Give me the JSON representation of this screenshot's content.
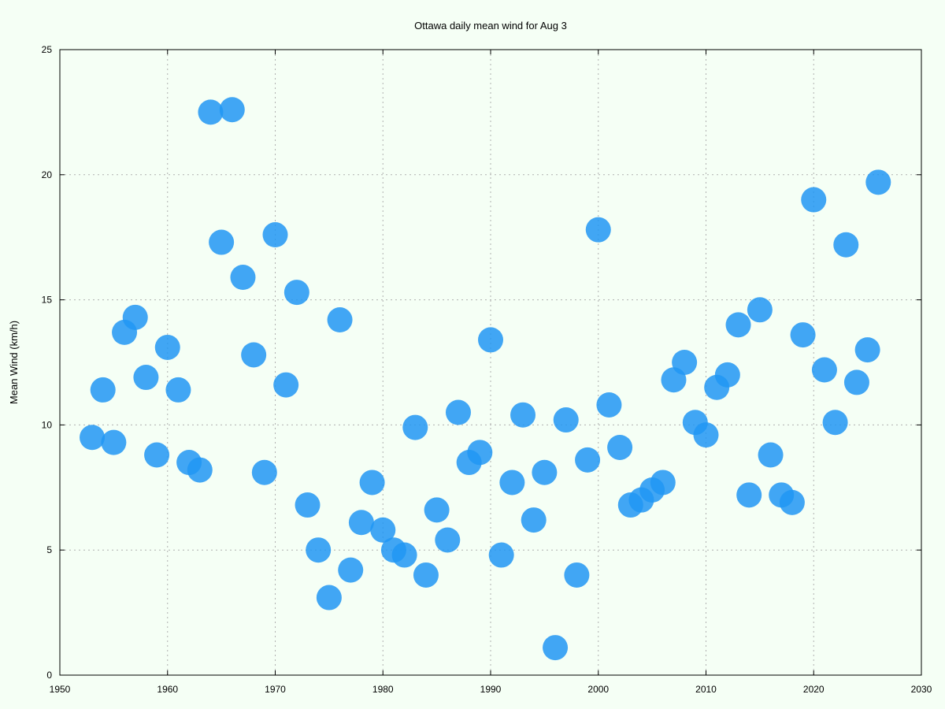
{
  "chart_data": {
    "type": "scatter",
    "title": "Ottawa daily mean wind for Aug 3",
    "xlabel": "",
    "ylabel": "Mean Wind (km/h)",
    "xlim": [
      1950,
      2030
    ],
    "ylim": [
      0,
      25
    ],
    "xticks": [
      1950,
      1960,
      1970,
      1980,
      1990,
      2000,
      2010,
      2020,
      2030
    ],
    "yticks": [
      0,
      5,
      10,
      15,
      20,
      25
    ],
    "grid": true,
    "marker_color": "#2196f3",
    "series": [
      {
        "points": [
          [
            1953,
            9.5
          ],
          [
            1954,
            11.4
          ],
          [
            1955,
            9.3
          ],
          [
            1956,
            13.7
          ],
          [
            1957,
            14.3
          ],
          [
            1958,
            11.9
          ],
          [
            1959,
            8.8
          ],
          [
            1960,
            13.1
          ],
          [
            1961,
            11.4
          ],
          [
            1962,
            8.5
          ],
          [
            1963,
            8.2
          ],
          [
            1964,
            22.5
          ],
          [
            1965,
            17.3
          ],
          [
            1966,
            22.6
          ],
          [
            1967,
            15.9
          ],
          [
            1968,
            12.8
          ],
          [
            1969,
            8.1
          ],
          [
            1970,
            17.6
          ],
          [
            1971,
            11.6
          ],
          [
            1972,
            15.3
          ],
          [
            1973,
            6.8
          ],
          [
            1974,
            5.0
          ],
          [
            1975,
            3.1
          ],
          [
            1976,
            14.2
          ],
          [
            1977,
            4.2
          ],
          [
            1978,
            6.1
          ],
          [
            1979,
            7.7
          ],
          [
            1980,
            5.8
          ],
          [
            1981,
            5.0
          ],
          [
            1982,
            4.8
          ],
          [
            1983,
            9.9
          ],
          [
            1984,
            4.0
          ],
          [
            1985,
            6.6
          ],
          [
            1986,
            5.4
          ],
          [
            1987,
            10.5
          ],
          [
            1988,
            8.5
          ],
          [
            1989,
            8.9
          ],
          [
            1990,
            13.4
          ],
          [
            1991,
            4.8
          ],
          [
            1992,
            7.7
          ],
          [
            1993,
            10.4
          ],
          [
            1994,
            6.2
          ],
          [
            1995,
            8.1
          ],
          [
            1996,
            1.1
          ],
          [
            1997,
            10.2
          ],
          [
            1998,
            4.0
          ],
          [
            1999,
            8.6
          ],
          [
            2000,
            17.8
          ],
          [
            2001,
            10.8
          ],
          [
            2002,
            9.1
          ],
          [
            2003,
            6.8
          ],
          [
            2004,
            7.0
          ],
          [
            2005,
            7.4
          ],
          [
            2006,
            7.7
          ],
          [
            2007,
            11.8
          ],
          [
            2008,
            12.5
          ],
          [
            2009,
            10.1
          ],
          [
            2010,
            9.6
          ],
          [
            2011,
            11.5
          ],
          [
            2012,
            12.0
          ],
          [
            2013,
            14.0
          ],
          [
            2014,
            7.2
          ],
          [
            2015,
            14.6
          ],
          [
            2016,
            8.8
          ],
          [
            2017,
            7.2
          ],
          [
            2018,
            6.9
          ],
          [
            2019,
            13.6
          ],
          [
            2020,
            19.0
          ],
          [
            2021,
            12.2
          ],
          [
            2022,
            10.1
          ],
          [
            2023,
            17.2
          ],
          [
            2024,
            11.7
          ],
          [
            2025,
            13.0
          ],
          [
            2026,
            19.7
          ]
        ]
      }
    ]
  }
}
